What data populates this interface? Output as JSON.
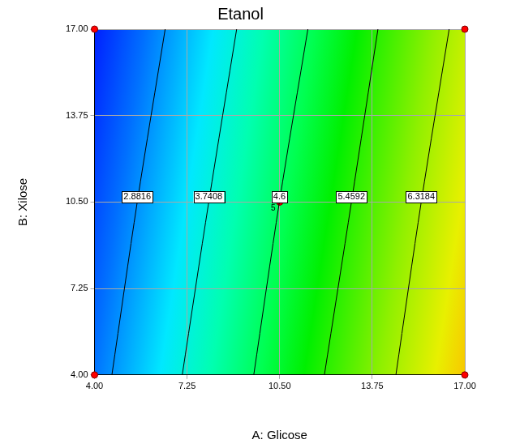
{
  "chart_data": {
    "type": "contour",
    "title": "Etanol",
    "x_label": "A: Glicose",
    "y_label": "B: Xilose",
    "xlim": [
      4,
      17
    ],
    "ylim": [
      4,
      17
    ],
    "xticks": [
      {
        "value": 4,
        "label": "4.00"
      },
      {
        "value": 7.25,
        "label": "7.25"
      },
      {
        "value": 10.5,
        "label": "10.50"
      },
      {
        "value": 13.75,
        "label": "13.75"
      },
      {
        "value": 17,
        "label": "17.00"
      }
    ],
    "yticks": [
      {
        "value": 4,
        "label": "4.00"
      },
      {
        "value": 7.25,
        "label": "7.25"
      },
      {
        "value": 10.5,
        "label": "10.50"
      },
      {
        "value": 13.75,
        "label": "13.75"
      },
      {
        "value": 17,
        "label": "17.00"
      }
    ],
    "grid": true,
    "contours": [
      {
        "level": 2.8816,
        "color": "#000000",
        "x": [
          4.61,
          5.5,
          6.48
        ],
        "y": [
          4,
          10.5,
          17
        ]
      },
      {
        "level": 3.7408,
        "color": "#000000",
        "x": [
          7.08,
          8.01,
          8.99
        ],
        "y": [
          4,
          10.5,
          17
        ]
      },
      {
        "level": 4.6,
        "color": "#000000",
        "x": [
          9.59,
          10.49,
          11.49
        ],
        "y": [
          4,
          10.5,
          17
        ]
      },
      {
        "level": 5.4592,
        "color": "#000000",
        "x": [
          12.07,
          13.02,
          13.95
        ],
        "y": [
          4,
          10.5,
          17
        ]
      },
      {
        "level": 6.3184,
        "color": "#000000",
        "x": [
          14.58,
          15.47,
          16.45
        ],
        "y": [
          4,
          10.5,
          17
        ]
      }
    ],
    "design_points": {
      "color": "#ff0000",
      "x": [
        4,
        4,
        17,
        17,
        10.5
      ],
      "y": [
        4,
        17,
        4,
        17,
        10.5
      ],
      "point_labels": [
        null,
        null,
        null,
        null,
        "5"
      ]
    }
  }
}
